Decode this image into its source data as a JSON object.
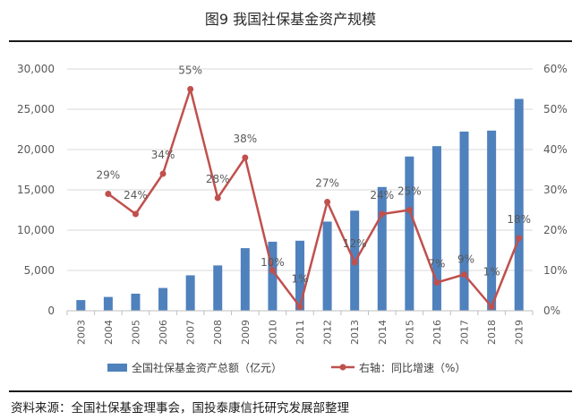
{
  "title": "图9 我国社保基金资产规模",
  "source": "资料来源：全国社保基金理事会，国投泰康信托研究发展部整理",
  "colors": {
    "bar": "#4f81bd",
    "line": "#c0504d",
    "axis": "#d9d9d9",
    "text": "#595959"
  },
  "chart_data": {
    "type": "bar",
    "title": "图9 我国社保基金资产规模",
    "categories": [
      "2003",
      "2004",
      "2005",
      "2006",
      "2007",
      "2008",
      "2009",
      "2010",
      "2011",
      "2012",
      "2013",
      "2014",
      "2015",
      "2016",
      "2017",
      "2018",
      "2019"
    ],
    "series": [
      {
        "name": "全国社保基金资产总额（亿元）",
        "type": "bar",
        "axis": "left",
        "values": [
          1325,
          1711,
          2118,
          2828,
          4397,
          5624,
          7766,
          8567,
          8688,
          11060,
          12416,
          15356,
          19138,
          20423,
          22231,
          22354,
          26286
        ]
      },
      {
        "name": "右轴：同比增速（%）",
        "type": "line",
        "axis": "right",
        "values": [
          null,
          29,
          24,
          34,
          55,
          28,
          38,
          10,
          1,
          27,
          12,
          24,
          25,
          7,
          9,
          1,
          18
        ],
        "labels": [
          "",
          "29%",
          "24%",
          "34%",
          "55%",
          "28%",
          "38%",
          "10%",
          "1%",
          "27%",
          "12%",
          "24%",
          "25%",
          "7%",
          "9%",
          "1%",
          "18%"
        ]
      }
    ],
    "left_axis": {
      "ylim": [
        0,
        30000
      ],
      "ticks": [
        "0",
        "5,000",
        "10,000",
        "15,000",
        "20,000",
        "25,000",
        "30,000"
      ]
    },
    "right_axis": {
      "ylim": [
        0,
        60
      ],
      "ticks": [
        "0%",
        "10%",
        "20%",
        "30%",
        "40%",
        "50%",
        "60%"
      ]
    },
    "legend": {
      "position": "bottom"
    }
  }
}
